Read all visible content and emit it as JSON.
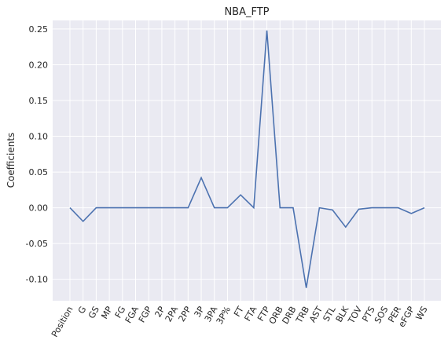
{
  "chart_data": {
    "type": "line",
    "title": "NBA_FTP",
    "xlabel": "",
    "ylabel": "Coefficients",
    "grid": true,
    "background": "#eaeaf2",
    "line_color": "#4c72b0",
    "ylim": [
      -0.13,
      0.262
    ],
    "yticks": [
      "-0.10",
      "-0.05",
      "0.00",
      "0.05",
      "0.10",
      "0.15",
      "0.20",
      "0.25"
    ],
    "ytick_values": [
      -0.1,
      -0.05,
      0.0,
      0.05,
      0.1,
      0.15,
      0.2,
      0.25
    ],
    "categories": [
      "Position",
      "G",
      "GS",
      "MP",
      "FG",
      "FGA",
      "FGP",
      "2P",
      "2PA",
      "2PP",
      "3P",
      "3PA",
      "3P%",
      "FT",
      "FTA",
      "FTP",
      "ORB",
      "DRB",
      "TRB",
      "AST",
      "STL",
      "BLK",
      "TOV",
      "PTS",
      "SOS",
      "PER",
      "eFGP",
      "WS"
    ],
    "values": [
      0.0,
      -0.019,
      0.0,
      0.0,
      0.0,
      0.0,
      0.0,
      0.0,
      0.0,
      0.0,
      0.042,
      0.0,
      0.0,
      0.018,
      0.0,
      0.248,
      0.0,
      0.0,
      -0.112,
      0.0,
      -0.003,
      -0.027,
      -0.002,
      0.0,
      0.0,
      0.0,
      -0.008,
      0.0
    ]
  }
}
